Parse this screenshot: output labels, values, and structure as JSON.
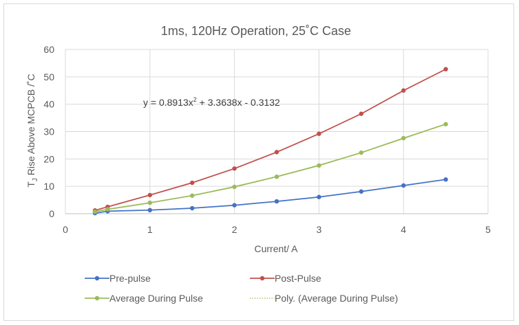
{
  "chart_data": {
    "type": "line",
    "title": "1ms, 120Hz Operation, 25˚C Case",
    "xlabel": "Current/ A",
    "ylabel_parts": {
      "pre": "T",
      "sub": "J",
      "post": " Rise Above MCPCB /˚C"
    },
    "xlim": [
      0,
      5
    ],
    "ylim": [
      0,
      60
    ],
    "x_ticks": [
      "0",
      "1",
      "2",
      "3",
      "4",
      "5"
    ],
    "y_ticks": [
      "0",
      "10",
      "20",
      "30",
      "40",
      "50",
      "60"
    ],
    "grid": true,
    "legend_position": "bottom",
    "trendline_equation": {
      "main": "y = 0.8913x",
      "sup": "2",
      "rest": " + 3.3638x - 0.3132"
    },
    "series": [
      {
        "name": "Pre-pulse",
        "color": "#4472c4",
        "x": [
          0.35,
          0.5,
          1.0,
          1.5,
          2.0,
          2.5,
          3.0,
          3.5,
          4.0,
          4.5
        ],
        "values": [
          0.2,
          0.9,
          1.3,
          2.0,
          3.1,
          4.5,
          6.1,
          8.1,
          10.3,
          12.5
        ]
      },
      {
        "name": "Post-Pulse",
        "color": "#c0504d",
        "x": [
          0.35,
          0.5,
          1.0,
          1.5,
          2.0,
          2.5,
          3.0,
          3.5,
          4.0,
          4.5
        ],
        "values": [
          1.2,
          2.5,
          6.8,
          11.3,
          16.5,
          22.5,
          29.2,
          36.5,
          45.0,
          52.8
        ]
      },
      {
        "name": "Average During Pulse",
        "color": "#9bbb59",
        "x": [
          0.35,
          0.5,
          1.0,
          1.5,
          2.0,
          2.5,
          3.0,
          3.5,
          4.0,
          4.5
        ],
        "values": [
          0.7,
          1.6,
          4.0,
          6.6,
          9.8,
          13.5,
          17.6,
          22.3,
          27.6,
          32.7
        ]
      }
    ],
    "trendline": {
      "name": "Poly. (Average During Pulse)",
      "color": "#9bbb59",
      "coefficients": [
        0.8913,
        3.3638,
        -0.3132
      ],
      "x_range": [
        0.35,
        4.5
      ]
    }
  }
}
